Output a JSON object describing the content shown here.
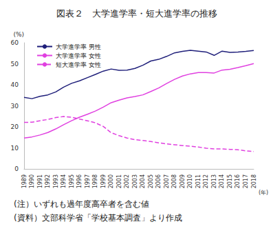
{
  "chart_data": {
    "type": "line",
    "title": "図表２　大学進学率・短大進学率の推移",
    "y_label": "(%)",
    "x_label": "(年)",
    "categories": [
      "1989",
      "1990",
      "1991",
      "1992",
      "1993",
      "1994",
      "1995",
      "1996",
      "1997",
      "1998",
      "1999",
      "2000",
      "2001",
      "2002",
      "2003",
      "2004",
      "2005",
      "2006",
      "2007",
      "2008",
      "2009",
      "2010",
      "2011",
      "2012",
      "2013",
      "2014",
      "2015",
      "2016",
      "2017",
      "2018"
    ],
    "series": [
      {
        "name": "大学進学率 男性",
        "color": "#1f1f7a",
        "line_style": "solid",
        "values": [
          34.0,
          33.4,
          34.5,
          35.2,
          36.6,
          38.9,
          40.7,
          41.9,
          43.4,
          44.9,
          46.5,
          47.5,
          46.9,
          47.0,
          47.8,
          49.3,
          51.3,
          52.1,
          53.5,
          55.2,
          55.9,
          56.4,
          56.0,
          55.6,
          54.0,
          56.0,
          55.4,
          55.6,
          55.9,
          56.3
        ]
      },
      {
        "name": "大学進学率 女性",
        "color": "#e040e0",
        "line_style": "solid",
        "values": [
          14.7,
          15.2,
          16.1,
          17.3,
          19.0,
          21.0,
          22.9,
          24.6,
          26.0,
          27.5,
          29.4,
          31.5,
          32.7,
          33.8,
          34.4,
          35.2,
          36.8,
          38.5,
          40.6,
          42.6,
          44.2,
          45.2,
          45.8,
          45.8,
          45.6,
          47.0,
          47.4,
          48.2,
          49.1,
          50.1
        ]
      },
      {
        "name": "短大進学率 女性",
        "color": "#e040e0",
        "line_style": "dashed",
        "values": [
          22.1,
          22.2,
          22.9,
          23.5,
          24.4,
          24.9,
          24.6,
          23.7,
          22.9,
          21.9,
          20.2,
          17.2,
          15.8,
          14.7,
          13.9,
          13.5,
          13.0,
          12.4,
          11.9,
          11.5,
          11.1,
          10.8,
          10.4,
          9.8,
          9.5,
          9.5,
          9.3,
          9.1,
          8.6,
          8.3
        ]
      }
    ],
    "ylim": [
      0,
      60
    ],
    "yticks": [
      0,
      10,
      20,
      30,
      40,
      50,
      60
    ],
    "grid": false,
    "legend": "upper left",
    "annotations": [
      "(注）いずれも過年度高卒者を含む値",
      "(資料）文部科学省「学校基本調査」より作成"
    ]
  }
}
